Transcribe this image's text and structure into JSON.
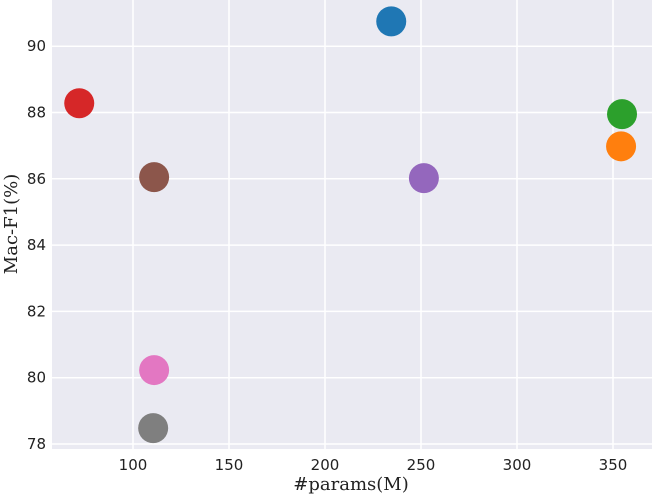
{
  "chart_data": {
    "type": "scatter",
    "title": "",
    "xlabel": "#params(M)",
    "ylabel": "Mac-F1(%)",
    "xlim": [
      58,
      362
    ],
    "ylim": [
      77.9,
      91.5
    ],
    "xticks": [
      100,
      150,
      200,
      250,
      300,
      350
    ],
    "yticks": [
      78,
      80,
      82,
      84,
      86,
      88,
      90
    ],
    "grid": true,
    "background": "#eaeaf2",
    "points": [
      {
        "x": 72,
        "y": 88.28,
        "color": "#d62728"
      },
      {
        "x": 234.5,
        "y": 90.75,
        "color": "#1f77b4"
      },
      {
        "x": 111,
        "y": 86.05,
        "color": "#8c564b"
      },
      {
        "x": 251.5,
        "y": 86.02,
        "color": "#9467bd"
      },
      {
        "x": 354.7,
        "y": 87.95,
        "color": "#2ca02c"
      },
      {
        "x": 354.2,
        "y": 86.98,
        "color": "#ff7f0e"
      },
      {
        "x": 111,
        "y": 80.23,
        "color": "#e377c2"
      },
      {
        "x": 110.5,
        "y": 78.48,
        "color": "#7f7f7f"
      }
    ]
  }
}
